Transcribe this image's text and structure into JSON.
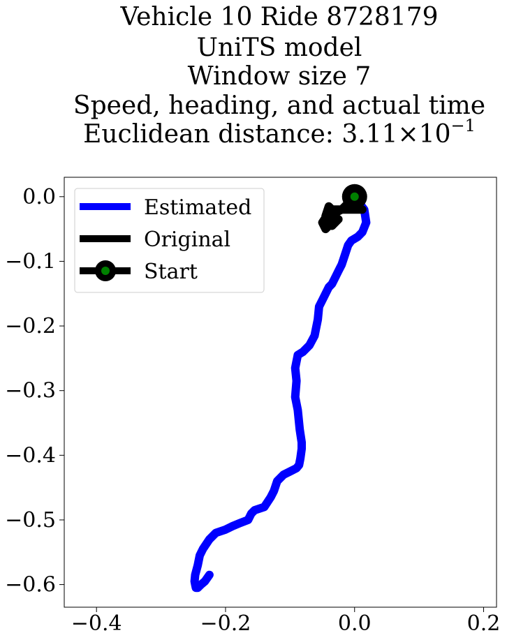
{
  "chart_data": {
    "type": "line",
    "title_lines": [
      "Vehicle 10 Ride 8728179",
      "UniTS model",
      "Window size 7",
      "Speed, heading, and actual time"
    ],
    "title_distance_prefix": "Euclidean distance: 3.11×10",
    "title_distance_exponent": "−1",
    "xlim": [
      -0.45,
      0.22
    ],
    "ylim": [
      -0.635,
      0.03
    ],
    "x_ticks": [
      {
        "value": -0.4,
        "label": "−0.4"
      },
      {
        "value": -0.2,
        "label": "−0.2"
      },
      {
        "value": 0.0,
        "label": "0.0"
      },
      {
        "value": 0.2,
        "label": "0.2"
      }
    ],
    "y_ticks": [
      {
        "value": 0.0,
        "label": "0.0"
      },
      {
        "value": -0.1,
        "label": "−0.1"
      },
      {
        "value": -0.2,
        "label": "−0.2"
      },
      {
        "value": -0.3,
        "label": "−0.3"
      },
      {
        "value": -0.4,
        "label": "−0.4"
      },
      {
        "value": -0.5,
        "label": "−0.5"
      },
      {
        "value": -0.6,
        "label": "−0.6"
      }
    ],
    "grid": false,
    "legend_position": "upper-left",
    "series": [
      {
        "name": "Estimated",
        "color": "#0000ff",
        "x": [
          0.0,
          0.015,
          0.018,
          0.012,
          0.005,
          -0.005,
          -0.01,
          -0.015,
          -0.02,
          -0.025,
          -0.03,
          -0.035,
          -0.04,
          -0.05,
          -0.055,
          -0.057,
          -0.06,
          -0.062,
          -0.07,
          -0.08,
          -0.088,
          -0.092,
          -0.09,
          -0.092,
          -0.088,
          -0.085,
          -0.082,
          -0.082,
          -0.084,
          -0.086,
          -0.09,
          -0.1,
          -0.11,
          -0.12,
          -0.125,
          -0.13,
          -0.14,
          -0.155,
          -0.16,
          -0.165,
          -0.178,
          -0.19,
          -0.2,
          -0.215,
          -0.225,
          -0.235,
          -0.24,
          -0.243,
          -0.247,
          -0.248,
          -0.247,
          -0.246,
          -0.243,
          -0.238,
          -0.232,
          -0.225
        ],
        "y": [
          0.0,
          -0.02,
          -0.04,
          -0.055,
          -0.062,
          -0.068,
          -0.075,
          -0.09,
          -0.105,
          -0.115,
          -0.125,
          -0.135,
          -0.14,
          -0.16,
          -0.17,
          -0.19,
          -0.205,
          -0.215,
          -0.23,
          -0.24,
          -0.245,
          -0.265,
          -0.285,
          -0.31,
          -0.33,
          -0.36,
          -0.38,
          -0.39,
          -0.405,
          -0.415,
          -0.42,
          -0.425,
          -0.43,
          -0.44,
          -0.455,
          -0.465,
          -0.48,
          -0.485,
          -0.49,
          -0.5,
          -0.505,
          -0.51,
          -0.515,
          -0.52,
          -0.53,
          -0.545,
          -0.555,
          -0.57,
          -0.585,
          -0.595,
          -0.6,
          -0.605,
          -0.605,
          -0.6,
          -0.595,
          -0.585
        ]
      },
      {
        "name": "Original",
        "color": "#000000",
        "x": [
          0.0,
          -0.01,
          -0.02,
          -0.03,
          -0.04,
          -0.045,
          -0.035,
          -0.025,
          -0.04,
          -0.05,
          -0.045,
          -0.03,
          -0.035,
          -0.028,
          0.005,
          0.012
        ],
        "y": [
          0.0,
          -0.01,
          -0.02,
          -0.025,
          -0.015,
          -0.03,
          -0.045,
          -0.035,
          -0.025,
          -0.04,
          -0.05,
          -0.035,
          -0.02,
          -0.02,
          -0.02,
          -0.02
        ]
      }
    ],
    "start": {
      "name": "Start",
      "x": 0.0,
      "y": 0.0,
      "outer_color": "#000000",
      "inner_color": "#008000"
    }
  }
}
